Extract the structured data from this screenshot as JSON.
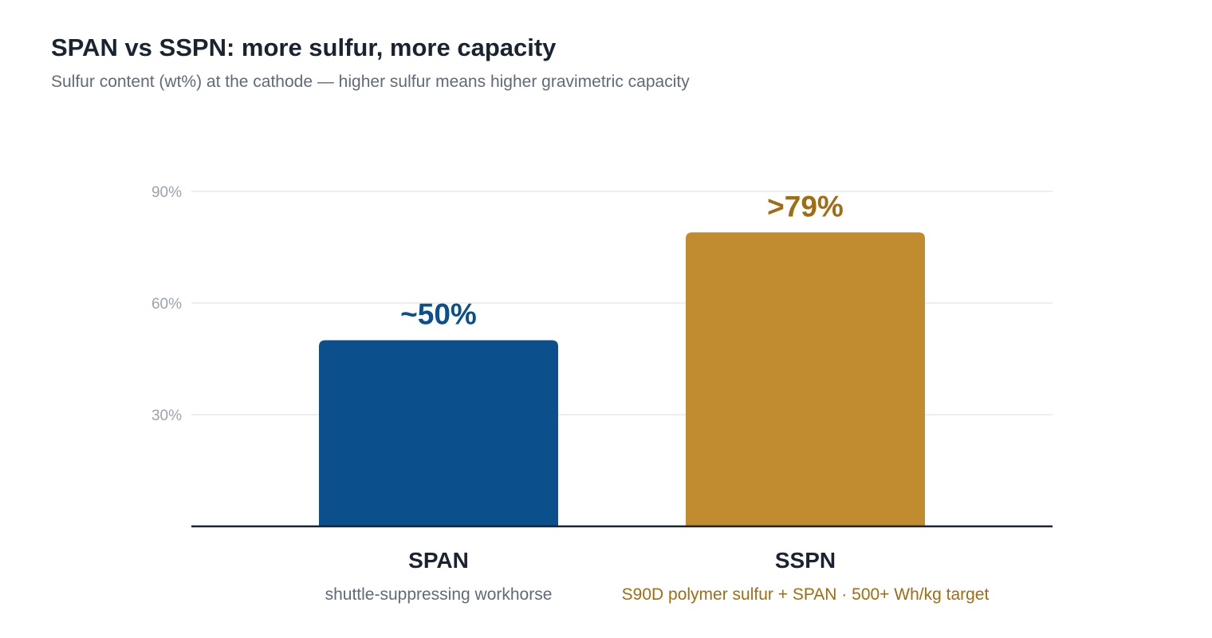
{
  "header": {
    "title": "SPAN vs SSPN: more sulfur, more capacity",
    "subtitle": "Sulfur content (wt%) at the cathode — higher sulfur means higher gravimetric capacity"
  },
  "chart_data": {
    "type": "bar",
    "title": "SPAN vs SSPN: more sulfur, more capacity",
    "subtitle": "Sulfur content (wt%) at the cathode — higher sulfur means higher gravimetric capacity",
    "xlabel": "",
    "ylabel": "",
    "ylim": [
      0,
      90
    ],
    "yticks": [
      30,
      60,
      90
    ],
    "ytick_labels": [
      "30%",
      "60%",
      "90%"
    ],
    "grid": true,
    "categories": [
      "SPAN",
      "SSPN"
    ],
    "values": [
      50,
      79
    ],
    "value_labels": [
      "~50%",
      ">79%"
    ],
    "descriptions": [
      "shuttle-suppressing workhorse",
      "S90D polymer sulfur + SPAN · 500+ Wh/kg target"
    ],
    "colors": [
      "#0b4f8c",
      "#c18b2f"
    ],
    "label_colors": [
      "#0b4f8c",
      "#a06c14"
    ],
    "description_colors": [
      "#5f6b79",
      "#a06c14"
    ]
  }
}
